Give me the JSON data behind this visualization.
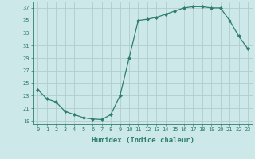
{
  "x": [
    0,
    1,
    2,
    3,
    4,
    5,
    6,
    7,
    8,
    9,
    10,
    11,
    12,
    13,
    14,
    15,
    16,
    17,
    18,
    19,
    20,
    21,
    22,
    23
  ],
  "y": [
    24,
    22.5,
    22,
    20.5,
    20,
    19.5,
    19.3,
    19.2,
    20,
    23,
    29,
    35,
    35.2,
    35.5,
    36,
    36.5,
    37,
    37.2,
    37.2,
    37,
    37,
    35,
    32.5,
    30.5
  ],
  "xlabel": "Humidex (Indice chaleur)",
  "ylim": [
    18.5,
    38
  ],
  "xlim": [
    -0.5,
    23.5
  ],
  "yticks": [
    19,
    21,
    23,
    25,
    27,
    29,
    31,
    33,
    35,
    37
  ],
  "xticks": [
    0,
    1,
    2,
    3,
    4,
    5,
    6,
    7,
    8,
    9,
    10,
    11,
    12,
    13,
    14,
    15,
    16,
    17,
    18,
    19,
    20,
    21,
    22,
    23
  ],
  "line_color": "#2e7d6e",
  "marker_color": "#2e7d6e",
  "bg_color": "#cce8e8",
  "grid_color": "#b0cccc",
  "text_color": "#2e7d6e",
  "tick_fontsize": 5.0,
  "xlabel_fontsize": 6.5
}
